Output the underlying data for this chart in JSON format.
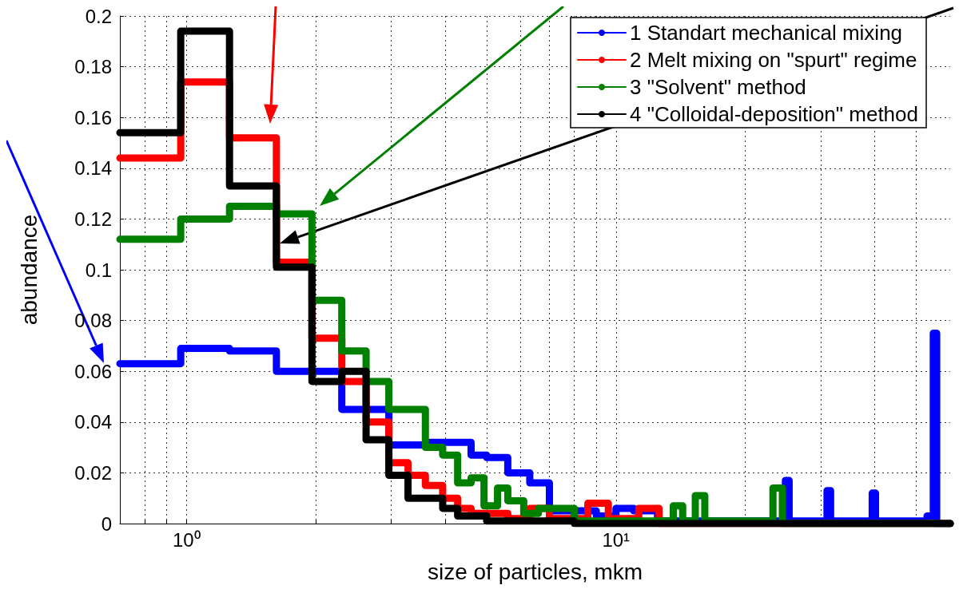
{
  "chart_data": {
    "type": "step",
    "xlabel": "size of particles, mkm",
    "ylabel": "abundance",
    "log": "x",
    "xlim": [
      0.7,
      60
    ],
    "xticks": [
      {
        "value": 0.8,
        "label": null
      },
      {
        "value": 0.9,
        "label": null
      },
      {
        "value": 1,
        "label": "10⁰"
      },
      {
        "value": 2,
        "label": null
      },
      {
        "value": 3,
        "label": null
      },
      {
        "value": 4,
        "label": null
      },
      {
        "value": 5,
        "label": null
      },
      {
        "value": 6,
        "label": null
      },
      {
        "value": 7,
        "label": null
      },
      {
        "value": 8,
        "label": null
      },
      {
        "value": 9,
        "label": null
      },
      {
        "value": 10,
        "label": "10¹"
      },
      {
        "value": 20,
        "label": null
      },
      {
        "value": 30,
        "label": null
      },
      {
        "value": 40,
        "label": null
      },
      {
        "value": 50,
        "label": null
      }
    ],
    "ylim": [
      0,
      0.2
    ],
    "yticks": [
      0,
      0.02,
      0.04,
      0.06,
      0.08,
      0.1,
      0.12,
      0.14,
      0.16,
      0.18,
      0.2
    ],
    "grid": true,
    "legend": "top right",
    "marker": "none",
    "line_style": "solid",
    "series": [
      {
        "name": "1 Standart mechanical mixing",
        "color": "#0000ff",
        "x": [
          0.7,
          0.97,
          1.26,
          1.62,
          2.3,
          2.96,
          3.6,
          4.6,
          5.0,
          5.6,
          6.3,
          7.0,
          8.0,
          9.0,
          10.0,
          11.0,
          12.5,
          24.8,
          25.3,
          31.0,
          31.6,
          39.5,
          40.2,
          53.0,
          54.8,
          55.8,
          60
        ],
        "values": [
          0.063,
          0.069,
          0.068,
          0.06,
          0.045,
          0.031,
          0.032,
          0.027,
          0.026,
          0.02,
          0.016,
          0.005,
          0.005,
          0.003,
          0.006,
          0.005,
          0.001,
          0.017,
          0.001,
          0.013,
          0.001,
          0.012,
          0.001,
          0.003,
          0.075,
          0,
          0
        ]
      },
      {
        "name": "2 Melt mixing on \"spurt\" regime",
        "color": "#ff0000",
        "x": [
          0.7,
          0.97,
          1.26,
          1.62,
          1.96,
          2.3,
          2.62,
          2.96,
          3.28,
          3.6,
          3.95,
          4.28,
          4.6,
          5.6,
          6.3,
          7.0,
          8.6,
          9.6,
          11.3,
          12.6,
          60
        ],
        "values": [
          0.144,
          0.174,
          0.152,
          0.103,
          0.073,
          0.056,
          0.04,
          0.024,
          0.019,
          0.015,
          0.01,
          0.006,
          0.004,
          0.002,
          0.006,
          0.002,
          0.008,
          0.002,
          0.006,
          0,
          0
        ]
      },
      {
        "name": "3 \"Solvent\" method",
        "color": "#008000",
        "x": [
          0.7,
          0.97,
          1.26,
          1.62,
          1.96,
          2.3,
          2.62,
          2.96,
          3.6,
          3.95,
          4.28,
          4.6,
          4.93,
          5.3,
          5.6,
          6.1,
          6.6,
          8.0,
          13.6,
          14.3,
          15.3,
          16.1,
          23.2,
          24.4,
          60
        ],
        "values": [
          0.112,
          0.12,
          0.125,
          0.122,
          0.088,
          0.068,
          0.056,
          0.045,
          0.03,
          0.027,
          0.016,
          0.018,
          0.007,
          0.014,
          0.009,
          0.004,
          0.006,
          0.001,
          0.007,
          0.001,
          0.011,
          0.001,
          0.014,
          0,
          0
        ]
      },
      {
        "name": "4 \"Colloidal-deposition\" method",
        "color": "#000000",
        "x": [
          0.7,
          0.97,
          1.26,
          1.62,
          1.96,
          2.3,
          2.62,
          2.96,
          3.28,
          3.95,
          4.28,
          5.0,
          8.0,
          60
        ],
        "values": [
          0.154,
          0.194,
          0.133,
          0.101,
          0.056,
          0.06,
          0.033,
          0.019,
          0.01,
          0.006,
          0.003,
          0.001,
          0,
          0
        ]
      }
    ]
  }
}
